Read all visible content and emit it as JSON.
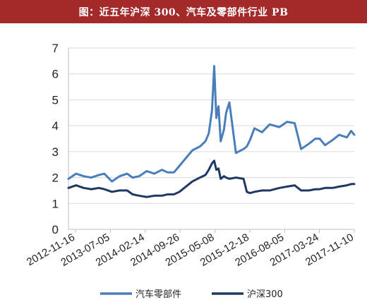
{
  "header": {
    "title": "图：近五年沪深 300、汽车及零部件行业 PB"
  },
  "chart_data": {
    "type": "line",
    "title": "图：近五年沪深 300、汽车及零部件行业 PB",
    "xlabel": "",
    "ylabel": "",
    "ylim": [
      0,
      7
    ],
    "yticks": [
      "0",
      "1",
      "2",
      "3",
      "4",
      "5",
      "6",
      "7"
    ],
    "xticks": [
      "2012-11-16",
      "2013-07-05",
      "2014-02-14",
      "2014-09-26",
      "2015-05-08",
      "2015-12-18",
      "2016-08-05",
      "2017-03-24",
      "2017-11-10"
    ],
    "grid": "horizontal",
    "legend": "bottom",
    "x": [
      "2012-11-16",
      "2013-01-04",
      "2013-02-22",
      "2013-04-12",
      "2013-05-31",
      "2013-07-05",
      "2013-08-23",
      "2013-10-11",
      "2013-11-29",
      "2014-01-03",
      "2014-02-14",
      "2014-04-04",
      "2014-05-23",
      "2014-07-11",
      "2014-08-15",
      "2014-09-26",
      "2014-10-31",
      "2014-12-12",
      "2015-01-23",
      "2015-03-13",
      "2015-04-17",
      "2015-05-08",
      "2015-05-29",
      "2015-06-12",
      "2015-06-26",
      "2015-07-10",
      "2015-07-24",
      "2015-08-14",
      "2015-08-28",
      "2015-09-18",
      "2015-10-30",
      "2015-12-18",
      "2016-01-08",
      "2016-01-29",
      "2016-02-26",
      "2016-04-15",
      "2016-06-03",
      "2016-08-05",
      "2016-09-23",
      "2016-11-11",
      "2016-12-23",
      "2017-02-10",
      "2017-03-24",
      "2017-04-21",
      "2017-05-26",
      "2017-07-14",
      "2017-08-25",
      "2017-10-13",
      "2017-11-10",
      "2017-11-30"
    ],
    "series": [
      {
        "name": "汽车零部件",
        "color": "#4a7ebb",
        "values": [
          1.95,
          2.15,
          2.05,
          2.0,
          2.1,
          2.15,
          1.85,
          2.05,
          2.15,
          2.0,
          2.05,
          2.25,
          2.15,
          2.3,
          2.2,
          2.2,
          2.45,
          2.75,
          3.05,
          3.2,
          3.4,
          3.7,
          4.6,
          6.3,
          4.3,
          4.75,
          3.4,
          3.85,
          4.5,
          4.9,
          2.95,
          3.1,
          3.2,
          3.45,
          3.9,
          3.75,
          4.05,
          3.95,
          4.15,
          4.1,
          3.1,
          3.3,
          3.5,
          3.5,
          3.25,
          3.45,
          3.65,
          3.55,
          3.8,
          3.65
        ]
      },
      {
        "name": "沪深300",
        "color": "#1f3864",
        "values": [
          1.6,
          1.7,
          1.6,
          1.55,
          1.6,
          1.55,
          1.45,
          1.5,
          1.5,
          1.35,
          1.3,
          1.25,
          1.3,
          1.3,
          1.35,
          1.35,
          1.45,
          1.65,
          1.85,
          2.0,
          2.1,
          2.3,
          2.55,
          2.65,
          2.3,
          2.35,
          1.95,
          2.05,
          2.0,
          1.95,
          2.0,
          1.95,
          1.45,
          1.4,
          1.45,
          1.5,
          1.5,
          1.6,
          1.65,
          1.7,
          1.5,
          1.5,
          1.55,
          1.55,
          1.6,
          1.6,
          1.65,
          1.7,
          1.75,
          1.75
        ]
      }
    ]
  }
}
